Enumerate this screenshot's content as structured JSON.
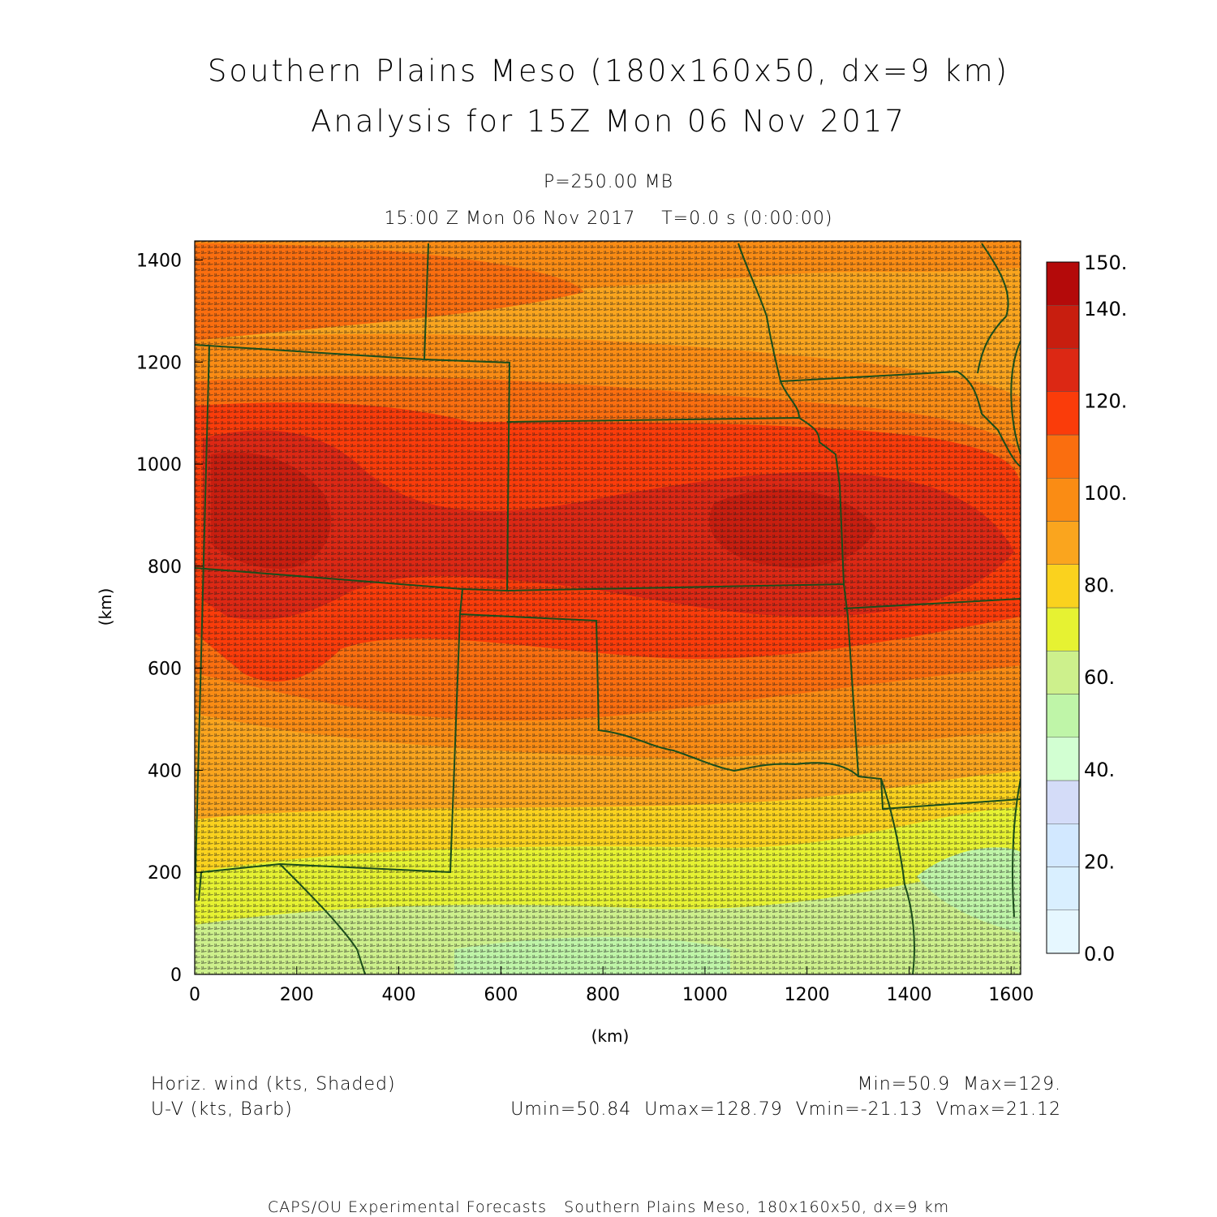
{
  "title": {
    "line1": "Southern Plains Meso (180x160x50, dx=9 km)",
    "line2": "Analysis for 15Z Mon 06 Nov 2017"
  },
  "subtitle": {
    "level": "P=250.00 MB",
    "time": "15:00 Z Mon 06 Nov 2017    T=0.0 s (0:00:00)"
  },
  "axes": {
    "xlabel": "(km)",
    "ylabel": "(km)",
    "xticks": [
      "0",
      "200",
      "400",
      "600",
      "800",
      "1000",
      "1200",
      "1400",
      "1600"
    ],
    "yticks": [
      "0",
      "200",
      "400",
      "600",
      "800",
      "1000",
      "1200",
      "1400"
    ]
  },
  "colorbar": {
    "labels": [
      "0.0",
      "20.",
      "40.",
      "60.",
      "80.",
      "100.",
      "120.",
      "140.",
      "150."
    ],
    "colors": [
      "#e6f7ff",
      "#d9efff",
      "#d2e8ff",
      "#d4dcf8",
      "#d2ffd2",
      "#bff5a8",
      "#cdf08c",
      "#e6f232",
      "#fad21e",
      "#faa51e",
      "#fa8c14",
      "#fa6e0f",
      "#fa3c0a",
      "#dc2814",
      "#c81e0f",
      "#b40a0a"
    ]
  },
  "footer": {
    "var1": "Horiz. wind (kts, Shaded)",
    "var2": "U-V (kts, Barb)",
    "minmax": "Min=50.9  Max=129.",
    "uv_stats": "Umin=50.84  Umax=128.79  Vmin=-21.13  Vmax=21.12",
    "credit": "CAPS/OU Experimental Forecasts   Southern Plains Meso, 180x160x50, dx=9 km"
  }
}
